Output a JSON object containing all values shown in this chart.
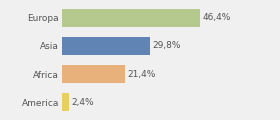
{
  "categories": [
    "Europa",
    "Asia",
    "Africa",
    "America"
  ],
  "values": [
    46.4,
    29.8,
    21.4,
    2.4
  ],
  "labels": [
    "46,4%",
    "29,8%",
    "21,4%",
    "2,4%"
  ],
  "bar_colors": [
    "#b5c98e",
    "#6084b4",
    "#e8b07a",
    "#e8d060"
  ],
  "background_color": "#f0f0f0",
  "xlim": [
    0,
    62
  ],
  "bar_height": 0.65,
  "label_fontsize": 6.5,
  "tick_fontsize": 6.5
}
